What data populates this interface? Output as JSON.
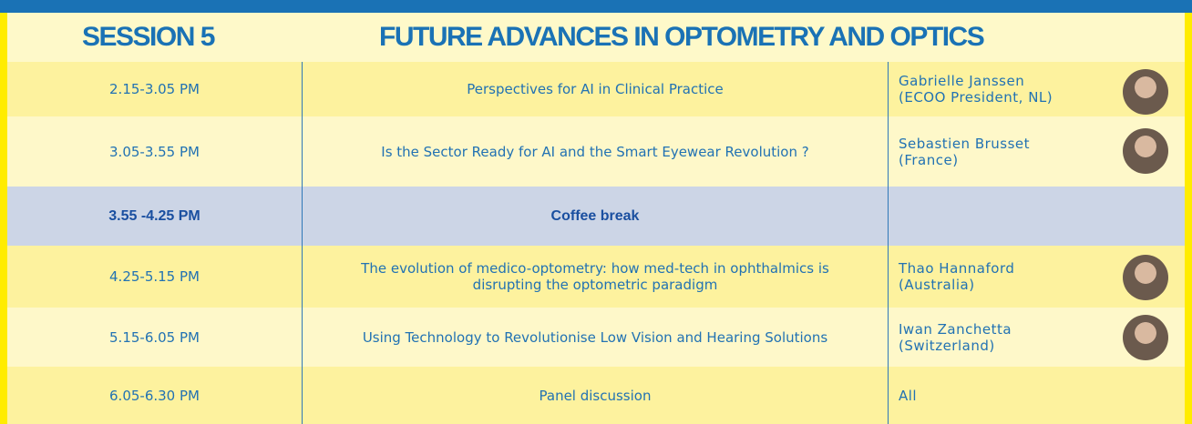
{
  "header": {
    "session": "SESSION 5",
    "title": "FUTURE ADVANCES IN OPTOMETRY AND OPTICS"
  },
  "rows": [
    {
      "time": "2.15-3.05 PM",
      "title": "Perspectives for AI in Clinical Practice",
      "speaker": "Gabrielle Janssen",
      "affiliation": "(ECOO President, NL)"
    },
    {
      "time": "3.05-3.55 PM",
      "title": "Is the Sector Ready for AI and the Smart Eyewear Revolution ?",
      "speaker": "Sebastien Brusset",
      "affiliation": "(France)"
    },
    {
      "time": "3.55 -4.25 PM",
      "title": "Coffee break"
    },
    {
      "time": "4.25-5.15 PM",
      "title": "The evolution of medico-optometry: how med-tech in ophthalmics is disrupting the optometric paradigm",
      "speaker": "Thao Hannaford",
      "affiliation": "(Australia)"
    },
    {
      "time": "5.15-6.05 PM",
      "title": "Using Technology to Revolutionise Low Vision and Hearing Solutions",
      "speaker": "Iwan Zanchetta",
      "affiliation": "(Switzerland)"
    },
    {
      "time": "6.05-6.30 PM",
      "title": "Panel discussion",
      "speaker": "All"
    }
  ]
}
